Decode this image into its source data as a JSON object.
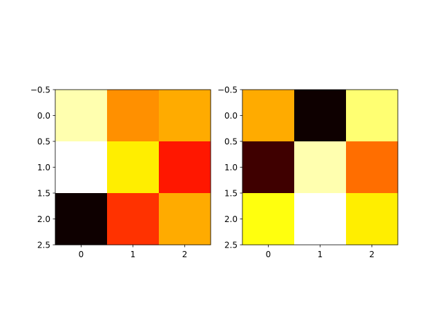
{
  "chart_data": [
    {
      "type": "heatmap",
      "colormap": "hot",
      "rows": 3,
      "cols": 3,
      "values": [
        [
          0.92,
          0.58,
          0.62
        ],
        [
          1.0,
          0.72,
          0.4
        ],
        [
          0.02,
          0.44,
          0.62
        ]
      ],
      "x_ticks": [
        "0",
        "1",
        "2"
      ],
      "y_ticks": [
        "−0.5",
        "0.0",
        "0.5",
        "1.0",
        "1.5",
        "2.0",
        "2.5"
      ],
      "xlim": [
        -0.5,
        2.5
      ],
      "ylim": [
        2.5,
        -0.5
      ],
      "grid": false
    },
    {
      "type": "heatmap",
      "colormap": "hot",
      "rows": 3,
      "cols": 3,
      "values": [
        [
          0.62,
          0.02,
          0.86
        ],
        [
          0.09,
          0.92,
          0.53
        ],
        [
          0.76,
          1.0,
          0.72
        ]
      ],
      "x_ticks": [
        "0",
        "1",
        "2"
      ],
      "y_ticks": [
        "−0.5",
        "0.0",
        "0.5",
        "1.0",
        "1.5",
        "2.0",
        "2.5"
      ],
      "xlim": [
        -0.5,
        2.5
      ],
      "ylim": [
        2.5,
        -0.5
      ],
      "grid": false
    }
  ]
}
